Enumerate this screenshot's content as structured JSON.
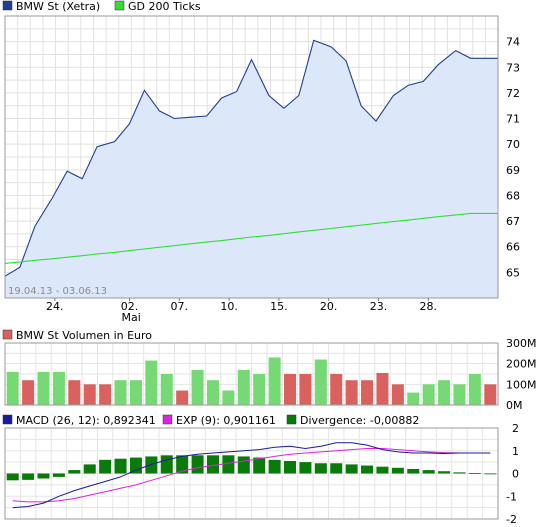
{
  "chart_data": [
    {
      "type": "line",
      "panel": "price",
      "legend": [
        {
          "name": "BMW St (Xetra)",
          "color": "#1f3f8f"
        },
        {
          "name": "GD 200 Ticks",
          "color": "#33dd33"
        }
      ],
      "period_label": "19.04.13 - 03.06.13",
      "x_ticks": [
        {
          "i": 2,
          "label": "24."
        },
        {
          "i": 5,
          "label": "02.",
          "sublabel": "Mai"
        },
        {
          "i": 7,
          "label": "07."
        },
        {
          "i": 9,
          "label": "10."
        },
        {
          "i": 11,
          "label": "15."
        },
        {
          "i": 13,
          "label": "20."
        },
        {
          "i": 15,
          "label": "23."
        },
        {
          "i": 17,
          "label": "28."
        }
      ],
      "y_ticks": [
        "65",
        "66",
        "67",
        "68",
        "69",
        "70",
        "71",
        "72",
        "73",
        "74"
      ],
      "ylim": [
        64.0,
        75.0
      ],
      "grid": true,
      "x": [
        0,
        0.6,
        1.2,
        1.9,
        2.5,
        3.1,
        3.7,
        4.4,
        5.0,
        5.6,
        6.2,
        6.8,
        7.4,
        8.1,
        8.7,
        9.3,
        9.9,
        10.6,
        11.2,
        11.8,
        12.4,
        13.1,
        13.7,
        14.3,
        14.9,
        15.6,
        16.2,
        16.8,
        17.4,
        18.1,
        18.7,
        19.3,
        19.8
      ],
      "series": [
        {
          "name": "BMW St (Xetra)",
          "color": "#1f3f8f",
          "values": [
            64.85,
            65.2,
            66.8,
            67.9,
            68.95,
            68.65,
            69.9,
            70.1,
            70.8,
            72.1,
            71.3,
            71.0,
            71.05,
            71.1,
            71.8,
            72.05,
            73.3,
            71.9,
            71.4,
            71.9,
            74.05,
            73.8,
            73.25,
            71.5,
            70.9,
            71.9,
            72.3,
            72.45,
            73.1,
            73.65,
            73.35,
            73.35,
            73.35
          ]
        },
        {
          "name": "GD 200 Ticks",
          "color": "#33dd33",
          "values": [
            65.35,
            65.41,
            65.47,
            65.53,
            65.59,
            65.65,
            65.72,
            65.78,
            65.85,
            65.91,
            65.98,
            66.04,
            66.11,
            66.18,
            66.24,
            66.31,
            66.38,
            66.44,
            66.51,
            66.58,
            66.64,
            66.71,
            66.78,
            66.84,
            66.91,
            66.98,
            67.04,
            67.11,
            67.17,
            67.24,
            67.3,
            67.3,
            67.3
          ]
        }
      ]
    },
    {
      "type": "bar",
      "panel": "volume",
      "legend": [
        {
          "name": "BMW St Volumen in Euro",
          "color": "#d9625e"
        }
      ],
      "y_ticks": [
        "0M",
        "100M",
        "200M",
        "300M"
      ],
      "ylim": [
        0,
        300
      ],
      "colors": {
        "up": "#76d976",
        "down": "#d9625e"
      },
      "values": [
        160,
        120,
        160,
        160,
        120,
        100,
        100,
        120,
        120,
        215,
        150,
        70,
        170,
        120,
        70,
        170,
        150,
        230,
        150,
        150,
        220,
        150,
        120,
        120,
        155,
        100,
        60,
        100,
        120,
        100,
        150,
        100
      ],
      "up": [
        true,
        false,
        true,
        true,
        false,
        false,
        false,
        true,
        true,
        true,
        true,
        false,
        true,
        true,
        true,
        true,
        true,
        true,
        false,
        false,
        true,
        false,
        false,
        false,
        false,
        false,
        true,
        true,
        true,
        true,
        true,
        false
      ]
    },
    {
      "type": "bar",
      "panel": "macd",
      "legend": [
        {
          "name": "MACD (26, 12): 0,892341",
          "color": "#1a1a9e"
        },
        {
          "name": "EXP (9): 0,901161",
          "color": "#dd22dd"
        },
        {
          "name": "Divergence: -0,00882",
          "color": "#0a7a0a"
        }
      ],
      "y_ticks": [
        "-2",
        "-1",
        "0",
        "1",
        "2"
      ],
      "ylim": [
        -2,
        2
      ],
      "divergence": [
        -0.3,
        -0.28,
        -0.22,
        -0.15,
        0.15,
        0.4,
        0.6,
        0.65,
        0.7,
        0.75,
        0.8,
        0.8,
        0.8,
        0.8,
        0.8,
        0.75,
        0.7,
        0.6,
        0.55,
        0.5,
        0.45,
        0.45,
        0.4,
        0.35,
        0.3,
        0.25,
        0.2,
        0.15,
        0.1,
        0.05,
        0.02,
        0.0
      ],
      "macd": [
        -1.5,
        -1.45,
        -1.3,
        -1.0,
        -0.75,
        -0.55,
        -0.35,
        -0.15,
        0.15,
        0.4,
        0.6,
        0.75,
        0.85,
        0.9,
        0.95,
        1.0,
        1.05,
        1.15,
        1.2,
        1.1,
        1.2,
        1.35,
        1.35,
        1.25,
        1.05,
        0.95,
        0.9,
        0.9,
        0.88,
        0.9,
        0.9,
        0.9
      ],
      "exp": [
        -1.2,
        -1.25,
        -1.25,
        -1.2,
        -1.1,
        -0.95,
        -0.8,
        -0.65,
        -0.5,
        -0.3,
        -0.1,
        0.1,
        0.25,
        0.35,
        0.45,
        0.55,
        0.65,
        0.75,
        0.85,
        0.9,
        0.95,
        1.0,
        1.05,
        1.1,
        1.1,
        1.05,
        1.0,
        0.95,
        0.92,
        0.9,
        0.9,
        0.9
      ]
    }
  ]
}
